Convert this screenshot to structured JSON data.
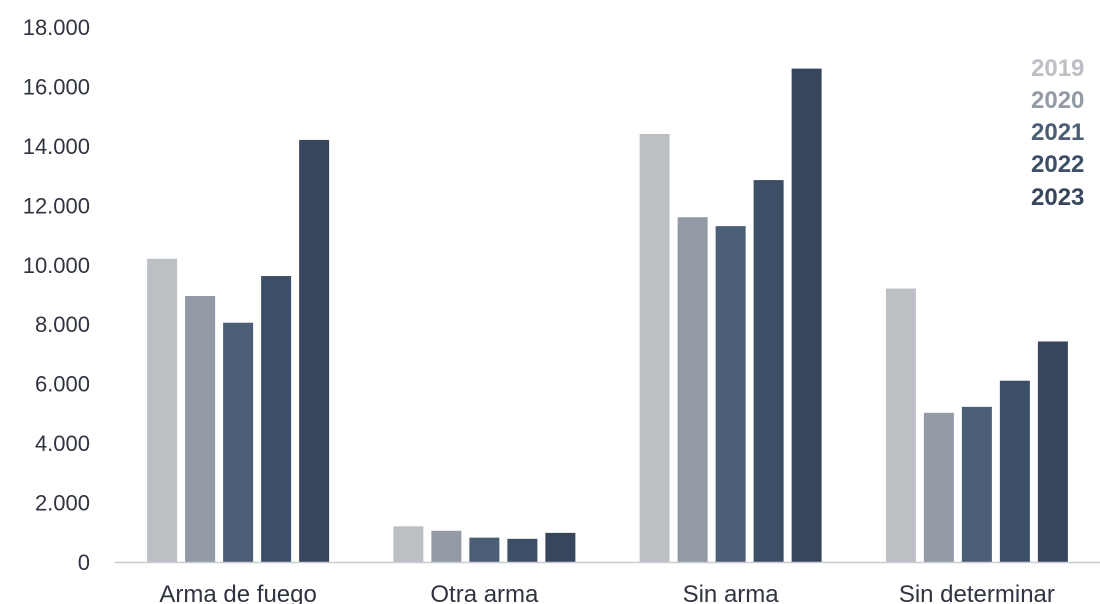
{
  "chart_data": {
    "type": "bar",
    "title": "",
    "xlabel": "",
    "ylabel": "",
    "categories": [
      "Arma de fuego",
      "Otra arma",
      "Sin arma",
      "Sin determinar"
    ],
    "series": [
      {
        "name": "2019",
        "color": "#bcc0c5",
        "values": [
          10200,
          1200,
          14400,
          9200
        ]
      },
      {
        "name": "2020",
        "color": "#9399a5",
        "values": [
          8950,
          1050,
          11600,
          5020
        ]
      },
      {
        "name": "2021",
        "color": "#4c5e76",
        "values": [
          8050,
          820,
          11300,
          5220
        ]
      },
      {
        "name": "2022",
        "color": "#3d4f66",
        "values": [
          9620,
          780,
          12850,
          6100
        ]
      },
      {
        "name": "2023",
        "color": "#37465c",
        "values": [
          14200,
          980,
          16600,
          7420
        ]
      }
    ],
    "ylim": [
      0,
      18000
    ],
    "yticks": [
      0,
      2000,
      4000,
      6000,
      8000,
      10000,
      12000,
      14000,
      16000,
      18000
    ],
    "ytick_labels": [
      "0",
      "2.000",
      "4.000",
      "6.000",
      "8.000",
      "10.000",
      "12.000",
      "14.000",
      "16.000",
      "18.000"
    ],
    "grid": false,
    "legend_position": "top-right"
  }
}
